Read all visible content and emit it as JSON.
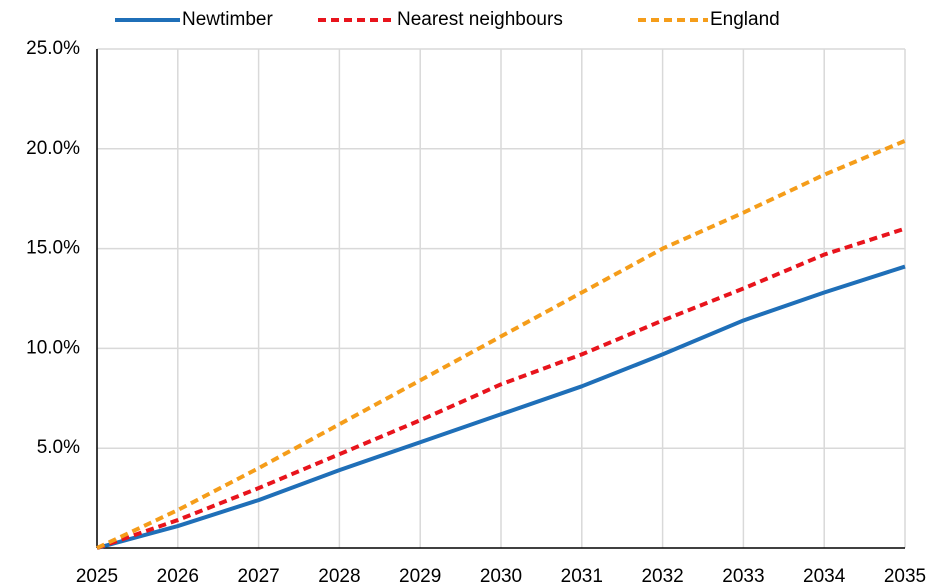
{
  "chart_data": {
    "type": "line",
    "x": [
      2025,
      2026,
      2027,
      2028,
      2029,
      2030,
      2031,
      2032,
      2033,
      2034,
      2035
    ],
    "xlim": [
      2025,
      2035
    ],
    "xticks": [
      2025,
      2026,
      2027,
      2028,
      2029,
      2030,
      2031,
      2032,
      2033,
      2034,
      2035
    ],
    "ylim": [
      0,
      25
    ],
    "yticks": [
      {
        "value": 5,
        "label": "5.0%"
      },
      {
        "value": 10,
        "label": "10.0%"
      },
      {
        "value": 15,
        "label": "15.0%"
      },
      {
        "value": 20,
        "label": "20.0%"
      },
      {
        "value": 25,
        "label": "25.0%"
      }
    ],
    "grid": true,
    "legend": "top",
    "series": [
      {
        "name": "Newtimber",
        "color": "#1f6fb8",
        "style": "solid",
        "values": [
          0,
          1.1,
          2.4,
          3.9,
          5.3,
          6.7,
          8.1,
          9.7,
          11.4,
          12.8,
          14.1
        ]
      },
      {
        "name": "Nearest neighbours",
        "color": "#e8141c",
        "style": "dashed",
        "values": [
          0,
          1.4,
          3.0,
          4.7,
          6.4,
          8.2,
          9.7,
          11.4,
          13.0,
          14.7,
          16.0
        ]
      },
      {
        "name": "England",
        "color": "#f59d1a",
        "style": "dashed",
        "values": [
          0,
          1.9,
          4.0,
          6.2,
          8.4,
          10.6,
          12.8,
          15.0,
          16.8,
          18.7,
          20.4
        ]
      }
    ]
  }
}
